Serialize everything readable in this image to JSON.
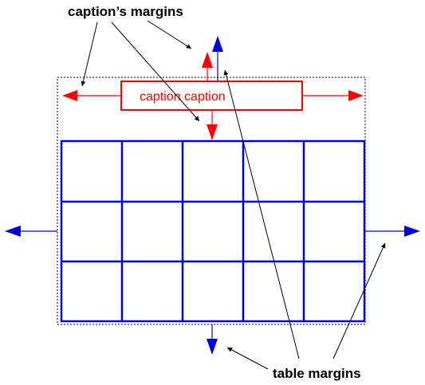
{
  "labels": {
    "caption_margins": "caption’s margins",
    "table_margins": "table margins",
    "caption_box": "caption caption"
  },
  "colors": {
    "caption": "#ff0000",
    "table": "#0000dd",
    "annotation": "#000000",
    "background": "#ffffff"
  },
  "table_grid": {
    "rows": 3,
    "columns": 5
  }
}
